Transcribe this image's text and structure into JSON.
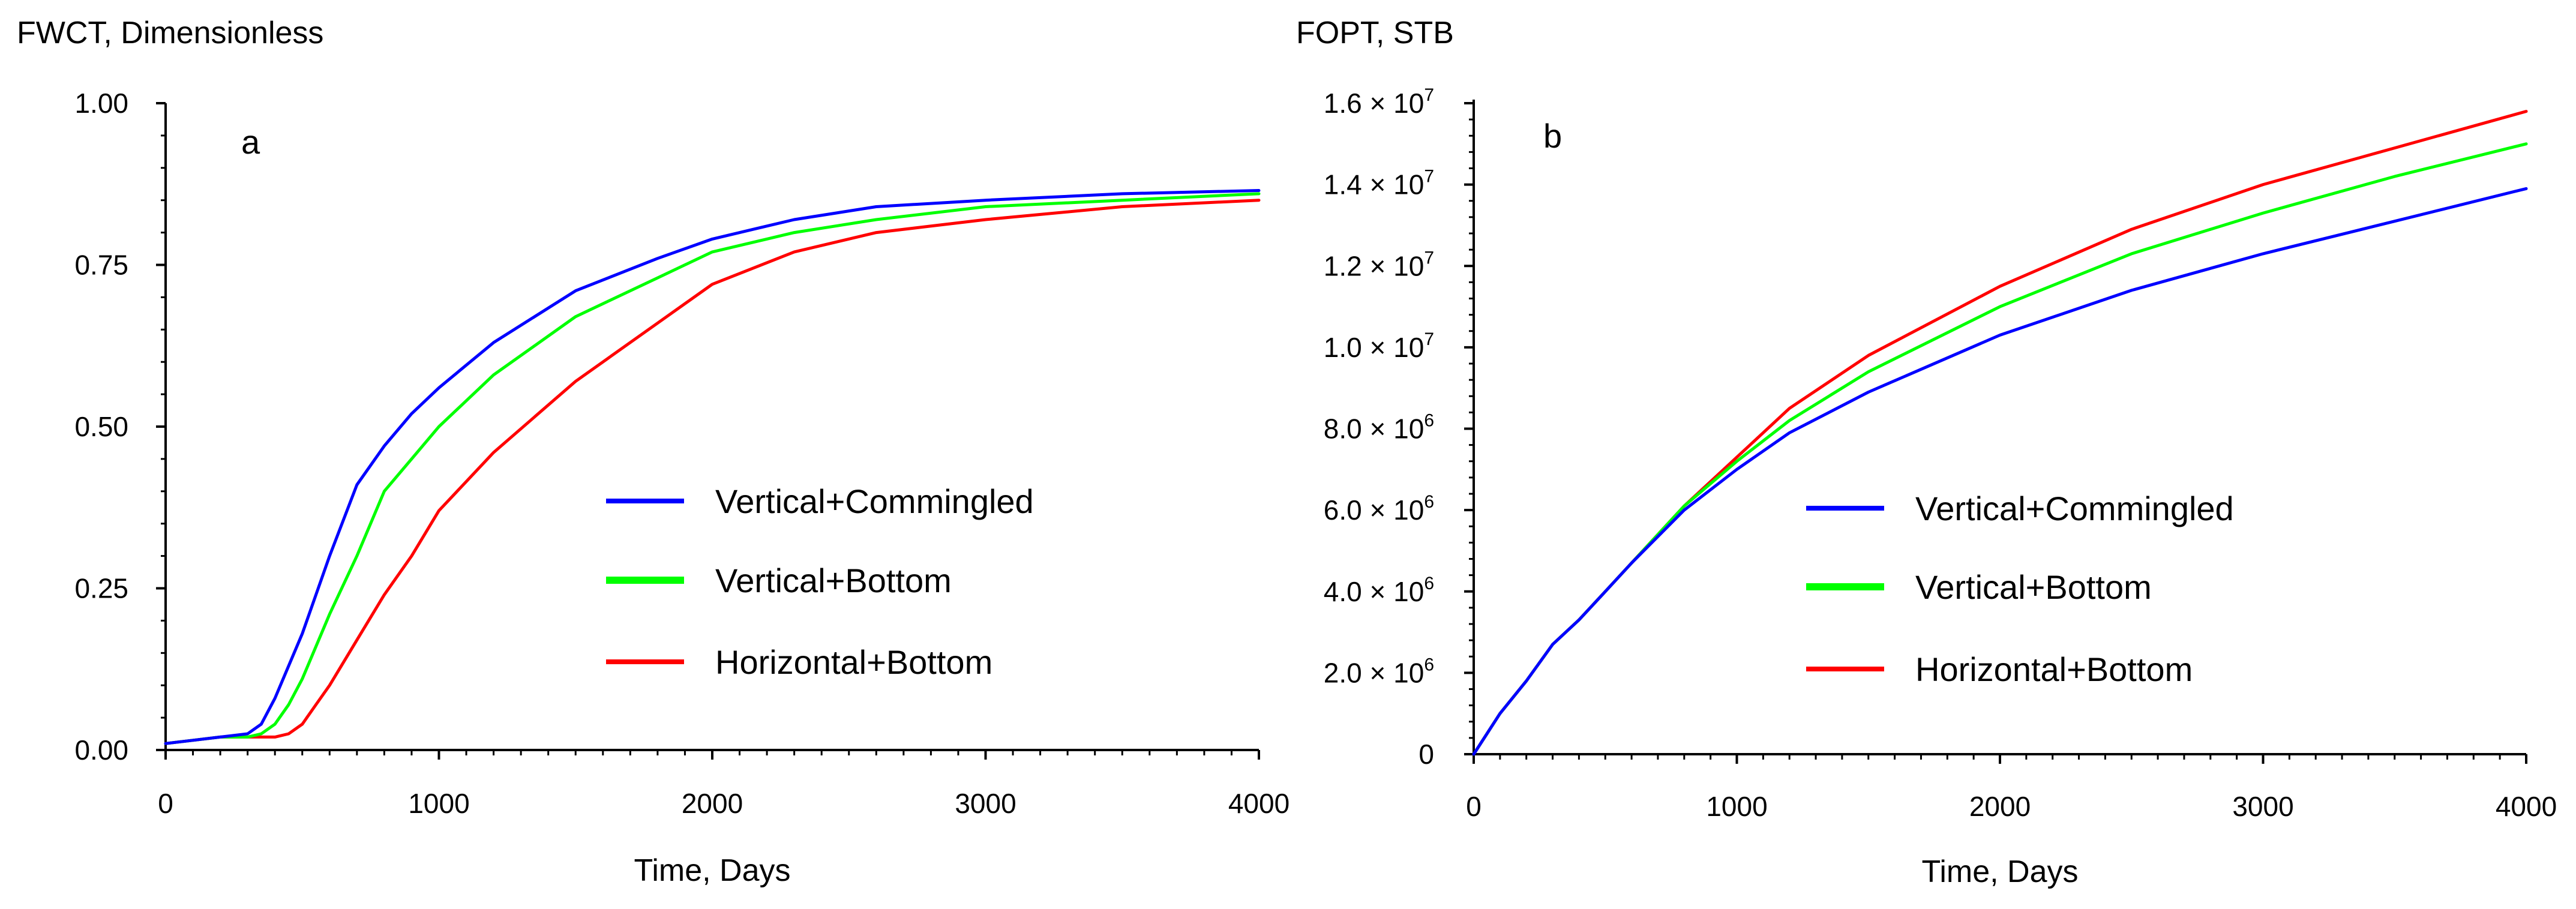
{
  "chart_data": [
    {
      "type": "line",
      "panel_label": "a",
      "title": "FWCT, Dimensionless",
      "xlabel": "Time,  Days",
      "ylabel": "FWCT, Dimensionless",
      "xlim": [
        0,
        4000
      ],
      "ylim": [
        0,
        1.0
      ],
      "x_ticks": [
        0,
        1000,
        2000,
        3000,
        4000
      ],
      "x_tick_labels": [
        "0",
        "1000",
        "2000",
        "3000",
        "4000"
      ],
      "y_ticks": [
        0,
        0.25,
        0.5,
        0.75,
        1.0
      ],
      "y_tick_labels": [
        "0.00",
        "0.25",
        "0.50",
        "0.75",
        "1.00"
      ],
      "legend_position": "center-right",
      "series": [
        {
          "name": "Vertical+Commingled",
          "color": "#0000ff",
          "x": [
            0,
            100,
            200,
            300,
            350,
            400,
            500,
            600,
            700,
            800,
            900,
            1000,
            1200,
            1500,
            1800,
            2000,
            2300,
            2600,
            3000,
            3500,
            4000
          ],
          "y": [
            0.01,
            0.015,
            0.02,
            0.025,
            0.04,
            0.08,
            0.18,
            0.3,
            0.41,
            0.47,
            0.52,
            0.56,
            0.63,
            0.71,
            0.76,
            0.79,
            0.82,
            0.84,
            0.85,
            0.86,
            0.865
          ]
        },
        {
          "name": "Vertical+Bottom",
          "color": "#00ff00",
          "x": [
            0,
            100,
            200,
            300,
            350,
            400,
            450,
            500,
            600,
            700,
            800,
            900,
            1000,
            1200,
            1500,
            1800,
            2000,
            2300,
            2600,
            3000,
            3500,
            4000
          ],
          "y": [
            0.01,
            0.015,
            0.02,
            0.02,
            0.025,
            0.04,
            0.07,
            0.11,
            0.21,
            0.3,
            0.4,
            0.45,
            0.5,
            0.58,
            0.67,
            0.73,
            0.77,
            0.8,
            0.82,
            0.84,
            0.85,
            0.86
          ]
        },
        {
          "name": "Horizontal+Bottom",
          "color": "#ff0000",
          "x": [
            0,
            100,
            200,
            300,
            400,
            450,
            500,
            550,
            600,
            700,
            800,
            900,
            1000,
            1200,
            1500,
            1800,
            2000,
            2300,
            2600,
            3000,
            3500,
            4000
          ],
          "y": [
            0.01,
            0.015,
            0.02,
            0.02,
            0.02,
            0.025,
            0.04,
            0.07,
            0.1,
            0.17,
            0.24,
            0.3,
            0.37,
            0.46,
            0.57,
            0.66,
            0.72,
            0.77,
            0.8,
            0.82,
            0.84,
            0.85
          ]
        }
      ]
    },
    {
      "type": "line",
      "panel_label": "b",
      "title": "FOPT, STB",
      "xlabel": "Time,  Days",
      "ylabel": "FOPT, STB",
      "xlim": [
        0,
        4000
      ],
      "ylim": [
        0,
        16000000
      ],
      "x_ticks": [
        0,
        1000,
        2000,
        3000,
        4000
      ],
      "x_tick_labels": [
        "0",
        "1000",
        "2000",
        "3000",
        "4000"
      ],
      "y_ticks": [
        0,
        2000000,
        4000000,
        6000000,
        8000000,
        10000000,
        12000000,
        14000000,
        16000000
      ],
      "y_tick_labels": [
        {
          "mantissa": "0",
          "exponent": ""
        },
        {
          "mantissa": "2.0 × 10",
          "exponent": "6"
        },
        {
          "mantissa": "4.0 × 10",
          "exponent": "6"
        },
        {
          "mantissa": "6.0 × 10",
          "exponent": "6"
        },
        {
          "mantissa": "8.0 × 10",
          "exponent": "6"
        },
        {
          "mantissa": "1.0 × 10",
          "exponent": "7"
        },
        {
          "mantissa": "1.2 × 10",
          "exponent": "7"
        },
        {
          "mantissa": "1.4 × 10",
          "exponent": "7"
        },
        {
          "mantissa": "1.6 × 10",
          "exponent": "7"
        }
      ],
      "legend_position": "center-right",
      "series": [
        {
          "name": "Vertical+Commingled",
          "color": "#0000ff",
          "x": [
            0,
            50,
            100,
            200,
            300,
            400,
            500,
            600,
            800,
            1000,
            1200,
            1500,
            2000,
            2500,
            3000,
            3500,
            4000
          ],
          "y": [
            0,
            500000,
            1000000,
            1800000,
            2700000,
            3300000,
            4000000,
            4700000,
            6000000,
            7000000,
            7900000,
            8900000,
            10300000,
            11400000,
            12300000,
            13100000,
            13900000
          ]
        },
        {
          "name": "Vertical+Bottom",
          "color": "#00ff00",
          "x": [
            0,
            50,
            100,
            200,
            300,
            400,
            500,
            600,
            800,
            1000,
            1200,
            1500,
            2000,
            2500,
            3000,
            3500,
            4000
          ],
          "y": [
            0,
            500000,
            1000000,
            1800000,
            2700000,
            3300000,
            4000000,
            4700000,
            6100000,
            7200000,
            8200000,
            9400000,
            11000000,
            12300000,
            13300000,
            14200000,
            15000000
          ]
        },
        {
          "name": "Horizontal+Bottom",
          "color": "#ff0000",
          "x": [
            0,
            50,
            100,
            200,
            300,
            400,
            500,
            600,
            800,
            1000,
            1200,
            1500,
            2000,
            2500,
            3000,
            3500,
            4000
          ],
          "y": [
            0,
            500000,
            1000000,
            1800000,
            2700000,
            3300000,
            4000000,
            4700000,
            6100000,
            7300000,
            8500000,
            9800000,
            11500000,
            12900000,
            14000000,
            14900000,
            15800000
          ]
        }
      ]
    }
  ]
}
